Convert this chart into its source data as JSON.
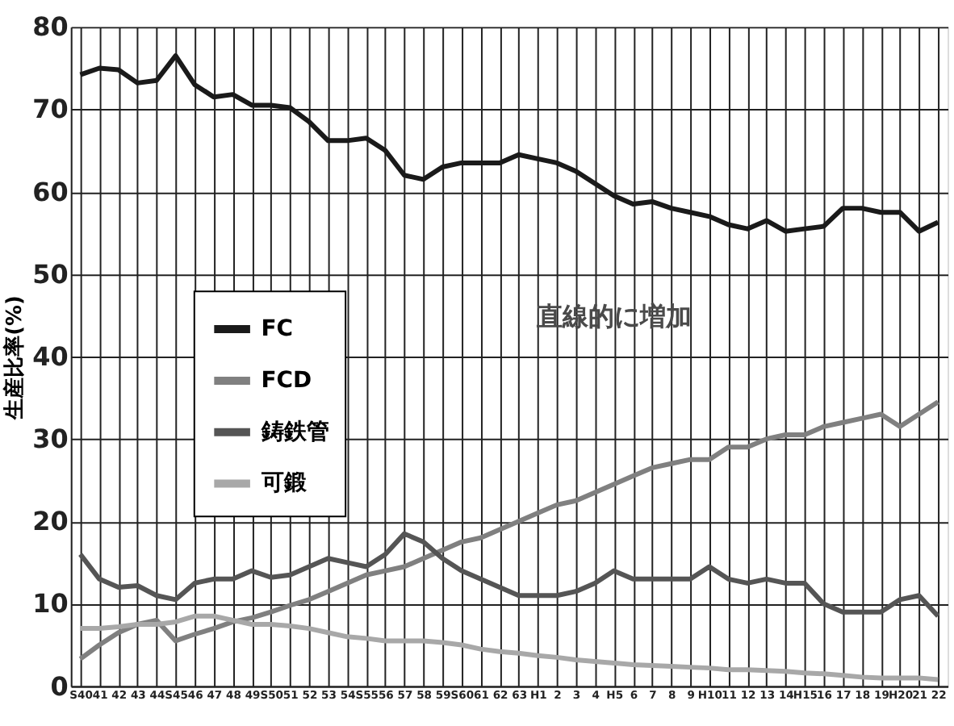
{
  "chart_data": {
    "type": "line",
    "ylabel": "生産比率(%)",
    "categories": [
      "S40",
      "41",
      "42",
      "43",
      "44",
      "S45",
      "46",
      "47",
      "48",
      "49",
      "S50",
      "51",
      "52",
      "53",
      "54",
      "S55",
      "56",
      "57",
      "58",
      "59",
      "S60",
      "61",
      "62",
      "63",
      "H1",
      "2",
      "3",
      "4",
      "H5",
      "6",
      "7",
      "8",
      "9",
      "H10",
      "11",
      "12",
      "13",
      "14",
      "H15",
      "16",
      "17",
      "18",
      "19",
      "H20",
      "21",
      "22"
    ],
    "series": [
      {
        "name": "FC",
        "color": "#1a1a1a",
        "values": [
          74.2,
          75,
          74.8,
          73.2,
          73.5,
          76.5,
          73,
          71.5,
          71.8,
          70.5,
          70.5,
          70.2,
          68.5,
          66.2,
          66.2,
          66.5,
          65,
          62,
          61.5,
          63,
          63.5,
          63.5,
          63.5,
          64.5,
          64,
          63.5,
          62.5,
          61,
          59.5,
          58.5,
          58.8,
          58,
          57.5,
          57,
          56,
          55.5,
          56.5,
          55.2,
          55.5,
          55.8,
          58,
          58,
          57.5,
          57.5,
          55.2,
          56.3
        ]
      },
      {
        "name": "FCD",
        "color": "#808080",
        "values": [
          3.3,
          5,
          6.5,
          7.5,
          8,
          5.5,
          6.3,
          7,
          7.8,
          8.3,
          9,
          9.8,
          10.5,
          11.5,
          12.5,
          13.5,
          14,
          14.5,
          15.5,
          16.5,
          17.5,
          18,
          19,
          20,
          21,
          22,
          22.5,
          23.5,
          24.5,
          25.5,
          26.5,
          27,
          27.5,
          27.5,
          29,
          29,
          30,
          30.5,
          30.5,
          31.5,
          32,
          32.5,
          33,
          31.5,
          33,
          34.5
        ]
      },
      {
        "name": "鋳鉄管",
        "color": "#555555",
        "values": [
          16,
          13,
          12,
          12.2,
          11,
          10.5,
          12.5,
          13,
          13,
          14,
          13.2,
          13.5,
          14.5,
          15.5,
          15,
          14.5,
          16,
          18.5,
          17.5,
          15.5,
          14,
          13,
          12,
          11,
          11,
          11,
          11.5,
          12.5,
          14,
          13,
          13,
          13,
          13,
          14.5,
          13,
          12.5,
          13,
          12.5,
          12.5,
          10,
          9,
          9,
          9,
          10.5,
          11,
          8.5
        ]
      },
      {
        "name": "可鍛",
        "color": "#a8a8a8",
        "values": [
          7,
          7,
          7.2,
          7.5,
          7.5,
          7.8,
          8.5,
          8.5,
          8,
          7.5,
          7.5,
          7.3,
          7,
          6.5,
          6,
          5.8,
          5.5,
          5.5,
          5.5,
          5.3,
          5,
          4.5,
          4.2,
          4,
          3.7,
          3.5,
          3.2,
          3,
          2.8,
          2.6,
          2.5,
          2.4,
          2.3,
          2.2,
          2,
          2,
          1.9,
          1.8,
          1.6,
          1.5,
          1.3,
          1.1,
          1,
          1,
          1,
          0.8
        ]
      }
    ],
    "ylim": [
      0,
      80
    ],
    "yticks": [
      0,
      10,
      20,
      30,
      40,
      50,
      60,
      70,
      80
    ],
    "grid": true,
    "legend": "left",
    "marker": "none",
    "line_style": "solid",
    "annotations": [
      "直線的に増加"
    ]
  }
}
